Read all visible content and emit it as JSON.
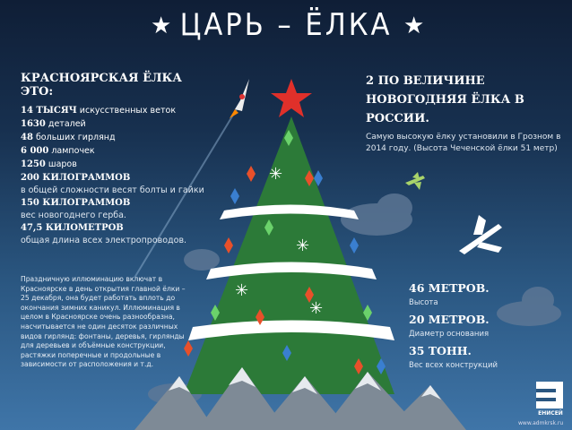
{
  "title": "ЦАРЬ – ЁЛКА",
  "left": {
    "heading": "КРАСНОЯРСКАЯ ЁЛКА ЭТО:",
    "facts": [
      {
        "value": "14 ТЫСЯЧ",
        "text": "искусственных веток"
      },
      {
        "value": "1630",
        "text": "деталей"
      },
      {
        "value": "48",
        "text": "больших гирлянд"
      },
      {
        "value": "6 000",
        "text": "лампочек"
      },
      {
        "value": "1250",
        "text": "шаров"
      },
      {
        "value": "200 КИЛОГРАММОВ",
        "text": "в общей сложности весят болты и гайки"
      },
      {
        "value": "150 КИЛОГРАММОВ",
        "text": "вес новогоднего герба."
      },
      {
        "value": "47,5 КИЛОМЕТРОВ",
        "text": "общая длина всех электропроводов."
      }
    ]
  },
  "note": "Праздничную иллюминацию включат в Красноярске в день открытия главной ёлки – 25 декабря, она будет работать вплоть до окончания зимних каникул. Иллюминация в целом в Красноярске очень разнообразна, насчитывается не один десяток различных видов гирлянд: фонтаны, деревья, гирлянды для деревьев и объёмные конструкции, растяжки поперечные и продольные в зависимости от расположения и т.д.",
  "right": {
    "heading_line1": "2 ПО ВЕЛИЧИНЕ",
    "heading_line2": "НОВОГОДНЯЯ ЁЛКА В РОССИИ.",
    "text": "Самую высокую ёлку установили в Грозном в 2014 году. (Высота Чеченской ёлки 51 метр)"
  },
  "stats": [
    {
      "value": "46 МЕТРОВ.",
      "label": "Высота"
    },
    {
      "value": "20 МЕТРОВ.",
      "label": "Диаметр основания"
    },
    {
      "value": "35 ТОНН.",
      "label": "Вес всех конструкций"
    }
  ],
  "logo": {
    "name": "ЕНИСЕЙ",
    "site": "www.admkrsk.ru"
  },
  "colors": {
    "tree": "#2e7a3a",
    "star": "#e0302a",
    "background": "#17304f"
  }
}
